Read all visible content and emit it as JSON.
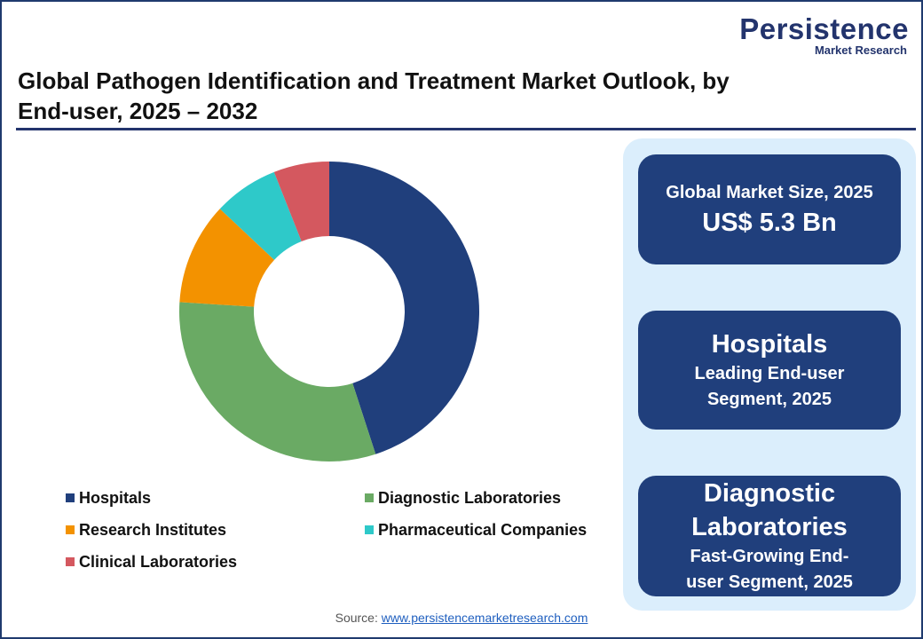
{
  "logo": {
    "name": "Persistence",
    "tagline": "Market Research"
  },
  "chart_data": {
    "type": "donut",
    "title": "Global Pathogen Identification and Treatment Market Outlook, by End-user, 2025 – 2032",
    "categories": [
      "Hospitals",
      "Diagnostic Laboratories",
      "Research Institutes",
      "Pharmaceutical Companies",
      "Clinical Laboratories"
    ],
    "values": [
      45,
      31,
      11,
      7,
      6
    ],
    "colors": [
      "#203f7c",
      "#6aaa64",
      "#f39200",
      "#2ec9c9",
      "#d4585f"
    ]
  },
  "cards": [
    {
      "small": "Global Market Size, 2025",
      "big": "US$ 5.3 Bn"
    },
    {
      "big": "Hospitals",
      "small": "Leading End-user Segment, 2025"
    },
    {
      "big": "Diagnostic Laboratories",
      "small": "Fast-Growing End-user Segment, 2025"
    }
  ],
  "source": {
    "label": "Source:",
    "link": "www.persistencemarketresearch.com"
  }
}
